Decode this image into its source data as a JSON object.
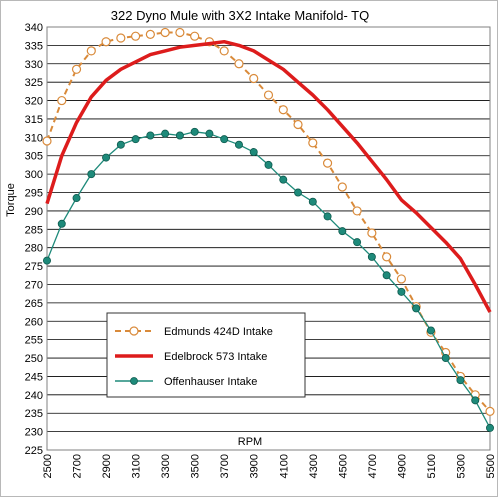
{
  "chart_data": {
    "type": "line",
    "title": "322 Dyno Mule with 3X2 Intake Manifold- TQ",
    "xlabel": "RPM",
    "ylabel": "Torque",
    "xlim": [
      2500,
      5500
    ],
    "ylim": [
      225,
      340
    ],
    "x_ticks": [
      2500,
      2700,
      2900,
      3100,
      3300,
      3500,
      3700,
      3900,
      4100,
      4300,
      4500,
      4700,
      4900,
      5100,
      5300,
      5500
    ],
    "y_ticks": [
      225,
      230,
      235,
      240,
      245,
      250,
      255,
      260,
      265,
      270,
      275,
      280,
      285,
      290,
      295,
      300,
      305,
      310,
      315,
      320,
      325,
      330,
      335,
      340
    ],
    "grid": "horizontal",
    "legend_position": "lower-left",
    "series": [
      {
        "name": "Edmunds 424D Intake",
        "color": "#d98a3a",
        "style": "dashed-open-circle",
        "x": [
          2500,
          2600,
          2700,
          2800,
          2900,
          3000,
          3100,
          3200,
          3300,
          3400,
          3500,
          3600,
          3700,
          3800,
          3900,
          4000,
          4100,
          4200,
          4300,
          4400,
          4500,
          4600,
          4700,
          4800,
          4900,
          5000,
          5100,
          5200,
          5300,
          5400,
          5500
        ],
        "y": [
          309,
          320,
          328.5,
          333.5,
          336,
          337,
          337.5,
          338,
          338.5,
          338.5,
          337.5,
          336,
          333.5,
          330,
          326,
          321.5,
          317.5,
          313.5,
          308.5,
          303,
          296.5,
          290,
          284,
          277.5,
          271.5,
          264,
          257,
          251.5,
          245,
          240,
          235.5
        ]
      },
      {
        "name": "Edelbrock 573 Intake",
        "color": "#dd1c1c",
        "style": "solid-thick",
        "x": [
          2500,
          2600,
          2700,
          2800,
          2900,
          3000,
          3100,
          3200,
          3300,
          3400,
          3500,
          3600,
          3700,
          3800,
          3900,
          4000,
          4100,
          4200,
          4300,
          4400,
          4500,
          4600,
          4700,
          4800,
          4900,
          5000,
          5100,
          5200,
          5300,
          5400,
          5500
        ],
        "y": [
          292,
          305,
          314,
          321,
          325.5,
          328.5,
          330.5,
          332.5,
          333.5,
          334.5,
          335,
          335.5,
          336,
          335,
          333.5,
          331,
          328.5,
          325,
          321.5,
          317.5,
          313,
          308.5,
          303.5,
          298.5,
          293,
          289.5,
          285.5,
          281.5,
          277,
          270,
          262.5
        ]
      },
      {
        "name": "Offenhauser Intake",
        "color": "#1e8a7a",
        "style": "solid-filled-circle",
        "x": [
          2500,
          2600,
          2700,
          2800,
          2900,
          3000,
          3100,
          3200,
          3300,
          3400,
          3500,
          3600,
          3700,
          3800,
          3900,
          4000,
          4100,
          4200,
          4300,
          4400,
          4500,
          4600,
          4700,
          4800,
          4900,
          5000,
          5100,
          5200,
          5300,
          5400,
          5500
        ],
        "y": [
          276.5,
          286.5,
          293.5,
          300,
          304.5,
          308,
          309.5,
          310.5,
          311,
          310.5,
          311.5,
          311,
          309.5,
          308,
          306,
          302.5,
          298.5,
          295,
          292.5,
          288.5,
          284.5,
          281.5,
          277.5,
          272.5,
          268,
          263.5,
          257.5,
          250,
          244,
          238.5,
          231
        ]
      }
    ]
  }
}
